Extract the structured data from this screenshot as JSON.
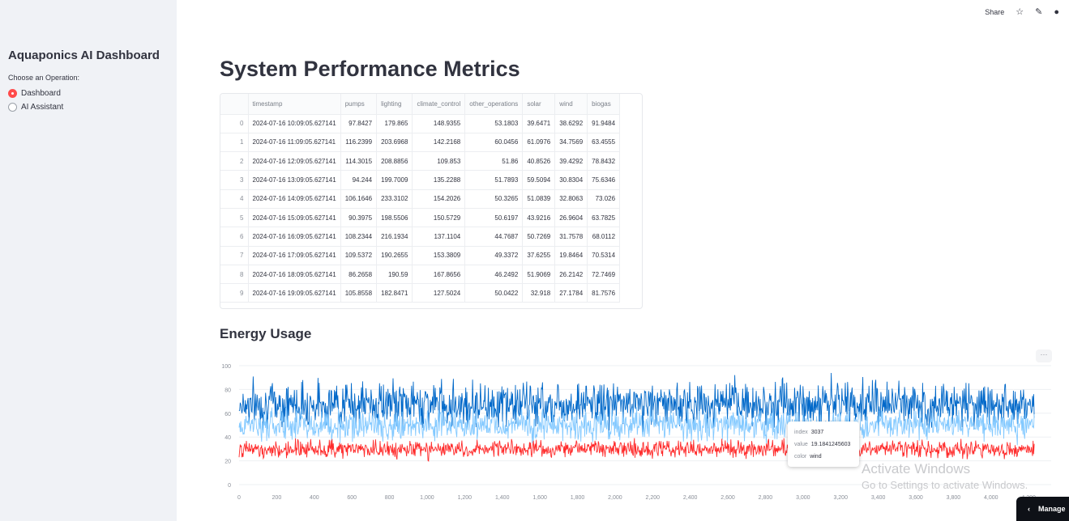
{
  "sidebar": {
    "title": "Aquaponics AI Dashboard",
    "radio_label": "Choose an Operation:",
    "options": [
      "Dashboard",
      "AI Assistant"
    ],
    "selected": "Dashboard"
  },
  "topbar": {
    "share": "Share"
  },
  "main": {
    "title": "System Performance Metrics",
    "section": "Energy Usage"
  },
  "table": {
    "columns": [
      "",
      "timestamp",
      "pumps",
      "lighting",
      "climate_control",
      "other_operations",
      "solar",
      "wind",
      "biogas"
    ],
    "rows": [
      [
        "0",
        "2024-07-16 10:09:05.627141",
        "97.8427",
        "179.865",
        "148.9355",
        "53.1803",
        "39.6471",
        "38.6292",
        "91.9484"
      ],
      [
        "1",
        "2024-07-16 11:09:05.627141",
        "116.2399",
        "203.6968",
        "142.2168",
        "60.0456",
        "61.0976",
        "34.7569",
        "63.4555"
      ],
      [
        "2",
        "2024-07-16 12:09:05.627141",
        "114.3015",
        "208.8856",
        "109.853",
        "51.86",
        "40.8526",
        "39.4292",
        "78.8432"
      ],
      [
        "3",
        "2024-07-16 13:09:05.627141",
        "94.244",
        "199.7009",
        "135.2288",
        "51.7893",
        "59.5094",
        "30.8304",
        "75.6346"
      ],
      [
        "4",
        "2024-07-16 14:09:05.627141",
        "106.1646",
        "233.3102",
        "154.2026",
        "50.3265",
        "51.0839",
        "32.8063",
        "73.026"
      ],
      [
        "5",
        "2024-07-16 15:09:05.627141",
        "90.3975",
        "198.5506",
        "150.5729",
        "50.6197",
        "43.9216",
        "26.9604",
        "63.7825"
      ],
      [
        "6",
        "2024-07-16 16:09:05.627141",
        "108.2344",
        "216.1934",
        "137.1104",
        "44.7687",
        "50.7269",
        "31.7578",
        "68.0112"
      ],
      [
        "7",
        "2024-07-16 17:09:05.627141",
        "109.5372",
        "190.2655",
        "153.3809",
        "49.3372",
        "37.6255",
        "19.8464",
        "70.5314"
      ],
      [
        "8",
        "2024-07-16 18:09:05.627141",
        "86.2658",
        "190.59",
        "167.8656",
        "46.2492",
        "51.9069",
        "26.2142",
        "72.7469"
      ],
      [
        "9",
        "2024-07-16 19:09:05.627141",
        "105.8558",
        "182.8471",
        "127.5024",
        "50.0422",
        "32.918",
        "27.1784",
        "81.7576"
      ]
    ]
  },
  "chart_data": {
    "type": "line",
    "x_ticks": [
      "0",
      "200",
      "400",
      "600",
      "800",
      "1,000",
      "1,200",
      "1,400",
      "1,600",
      "1,800",
      "2,000",
      "2,200",
      "2,400",
      "2,600",
      "2,800",
      "3,000",
      "3,200",
      "3,400",
      "3,600",
      "3,800",
      "4,000",
      "4,200"
    ],
    "y_ticks": [
      "0",
      "20",
      "40",
      "60",
      "80",
      "100"
    ],
    "xlim": [
      0,
      4320
    ],
    "ylim": [
      0,
      100
    ],
    "series": [
      {
        "color": "#0068c9",
        "mean": 68,
        "spread": 13
      },
      {
        "color": "#83c9ff",
        "mean": 50,
        "spread": 9
      },
      {
        "color": "#ff2b2b",
        "mean": 30,
        "spread": 5
      }
    ]
  },
  "tooltip": {
    "rows": [
      {
        "key": "index",
        "value": "3037"
      },
      {
        "key": "value",
        "value": "19.1841245603"
      },
      {
        "key": "color",
        "value": "wind"
      }
    ]
  },
  "watermark": {
    "line1": "Activate Windows",
    "line2": "Go to Settings to activate Windows."
  },
  "taskbar": {
    "manage": "Manage"
  }
}
